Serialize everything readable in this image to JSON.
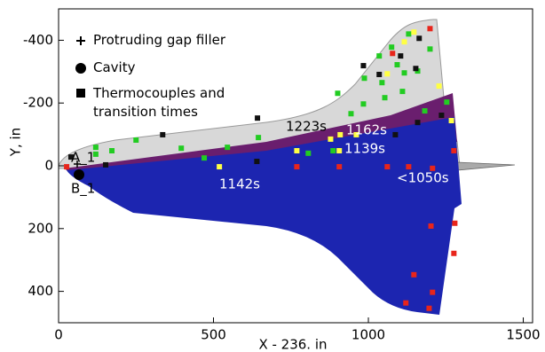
{
  "chart_data": {
    "type": "scatter",
    "xlabel": "X - 236. in",
    "ylabel": "Y, in",
    "xlim": [
      0,
      1530
    ],
    "ylim": [
      -500,
      500
    ],
    "y_inverted": true,
    "xticks": [
      0,
      500,
      1000,
      1500
    ],
    "yticks": [
      -400,
      -200,
      0,
      200,
      400
    ],
    "legend": [
      "Protruding gap filler",
      "Cavity",
      "Thermocouples and transition times"
    ],
    "annotations": [
      "1223s",
      "1162s",
      "1139s",
      "1142s",
      "<1050s",
      "A_1",
      "B_1"
    ],
    "series": [
      {
        "color": "#22cc22",
        "x": [
          120,
          120,
          172,
          250,
          396,
          470,
          545,
          645,
          806,
          886,
          944,
          901,
          984,
          1053,
          1110,
          1044,
          987,
          1116,
          1159,
          1035,
          1093,
          1075,
          1130,
          1199,
          1253,
          1182
        ],
        "y": [
          -59,
          -37,
          -48,
          -82,
          -56,
          -25,
          -59,
          -90,
          -40,
          -48,
          -166,
          -231,
          -197,
          -217,
          -237,
          -265,
          -279,
          -296,
          -302,
          -350,
          -322,
          -378,
          -420,
          -372,
          -203,
          -175
        ]
      },
      {
        "color": "#ffff44",
        "x": [
          519,
          769,
          878,
          909,
          961,
          906,
          1116,
          1147,
          1061,
          1228,
          1268
        ],
        "y": [
          3,
          -48,
          -85,
          -99,
          -99,
          -48,
          -395,
          -426,
          -293,
          -254,
          -144
        ]
      },
      {
        "color": "#e8251b",
        "x": [
          26,
          769,
          906,
          1061,
          1130,
          1207,
          1276,
          1078,
          1199,
          1147,
          1207,
          1202,
          1279,
          1276,
          1196,
          1121
        ],
        "y": [
          3,
          3,
          3,
          3,
          3,
          8,
          -48,
          -358,
          -437,
          347,
          403,
          192,
          183,
          279,
          454,
          437
        ]
      },
      {
        "color": "#111111",
        "x": [
          40,
          152,
          336,
          642,
          640,
          984,
          1035,
          1104,
          1164,
          1153,
          1236,
          1087,
          1159
        ],
        "y": [
          -28,
          -3,
          -99,
          -152,
          -14,
          -319,
          -291,
          -350,
          -406,
          -310,
          -161,
          -99,
          -138
        ]
      }
    ]
  }
}
